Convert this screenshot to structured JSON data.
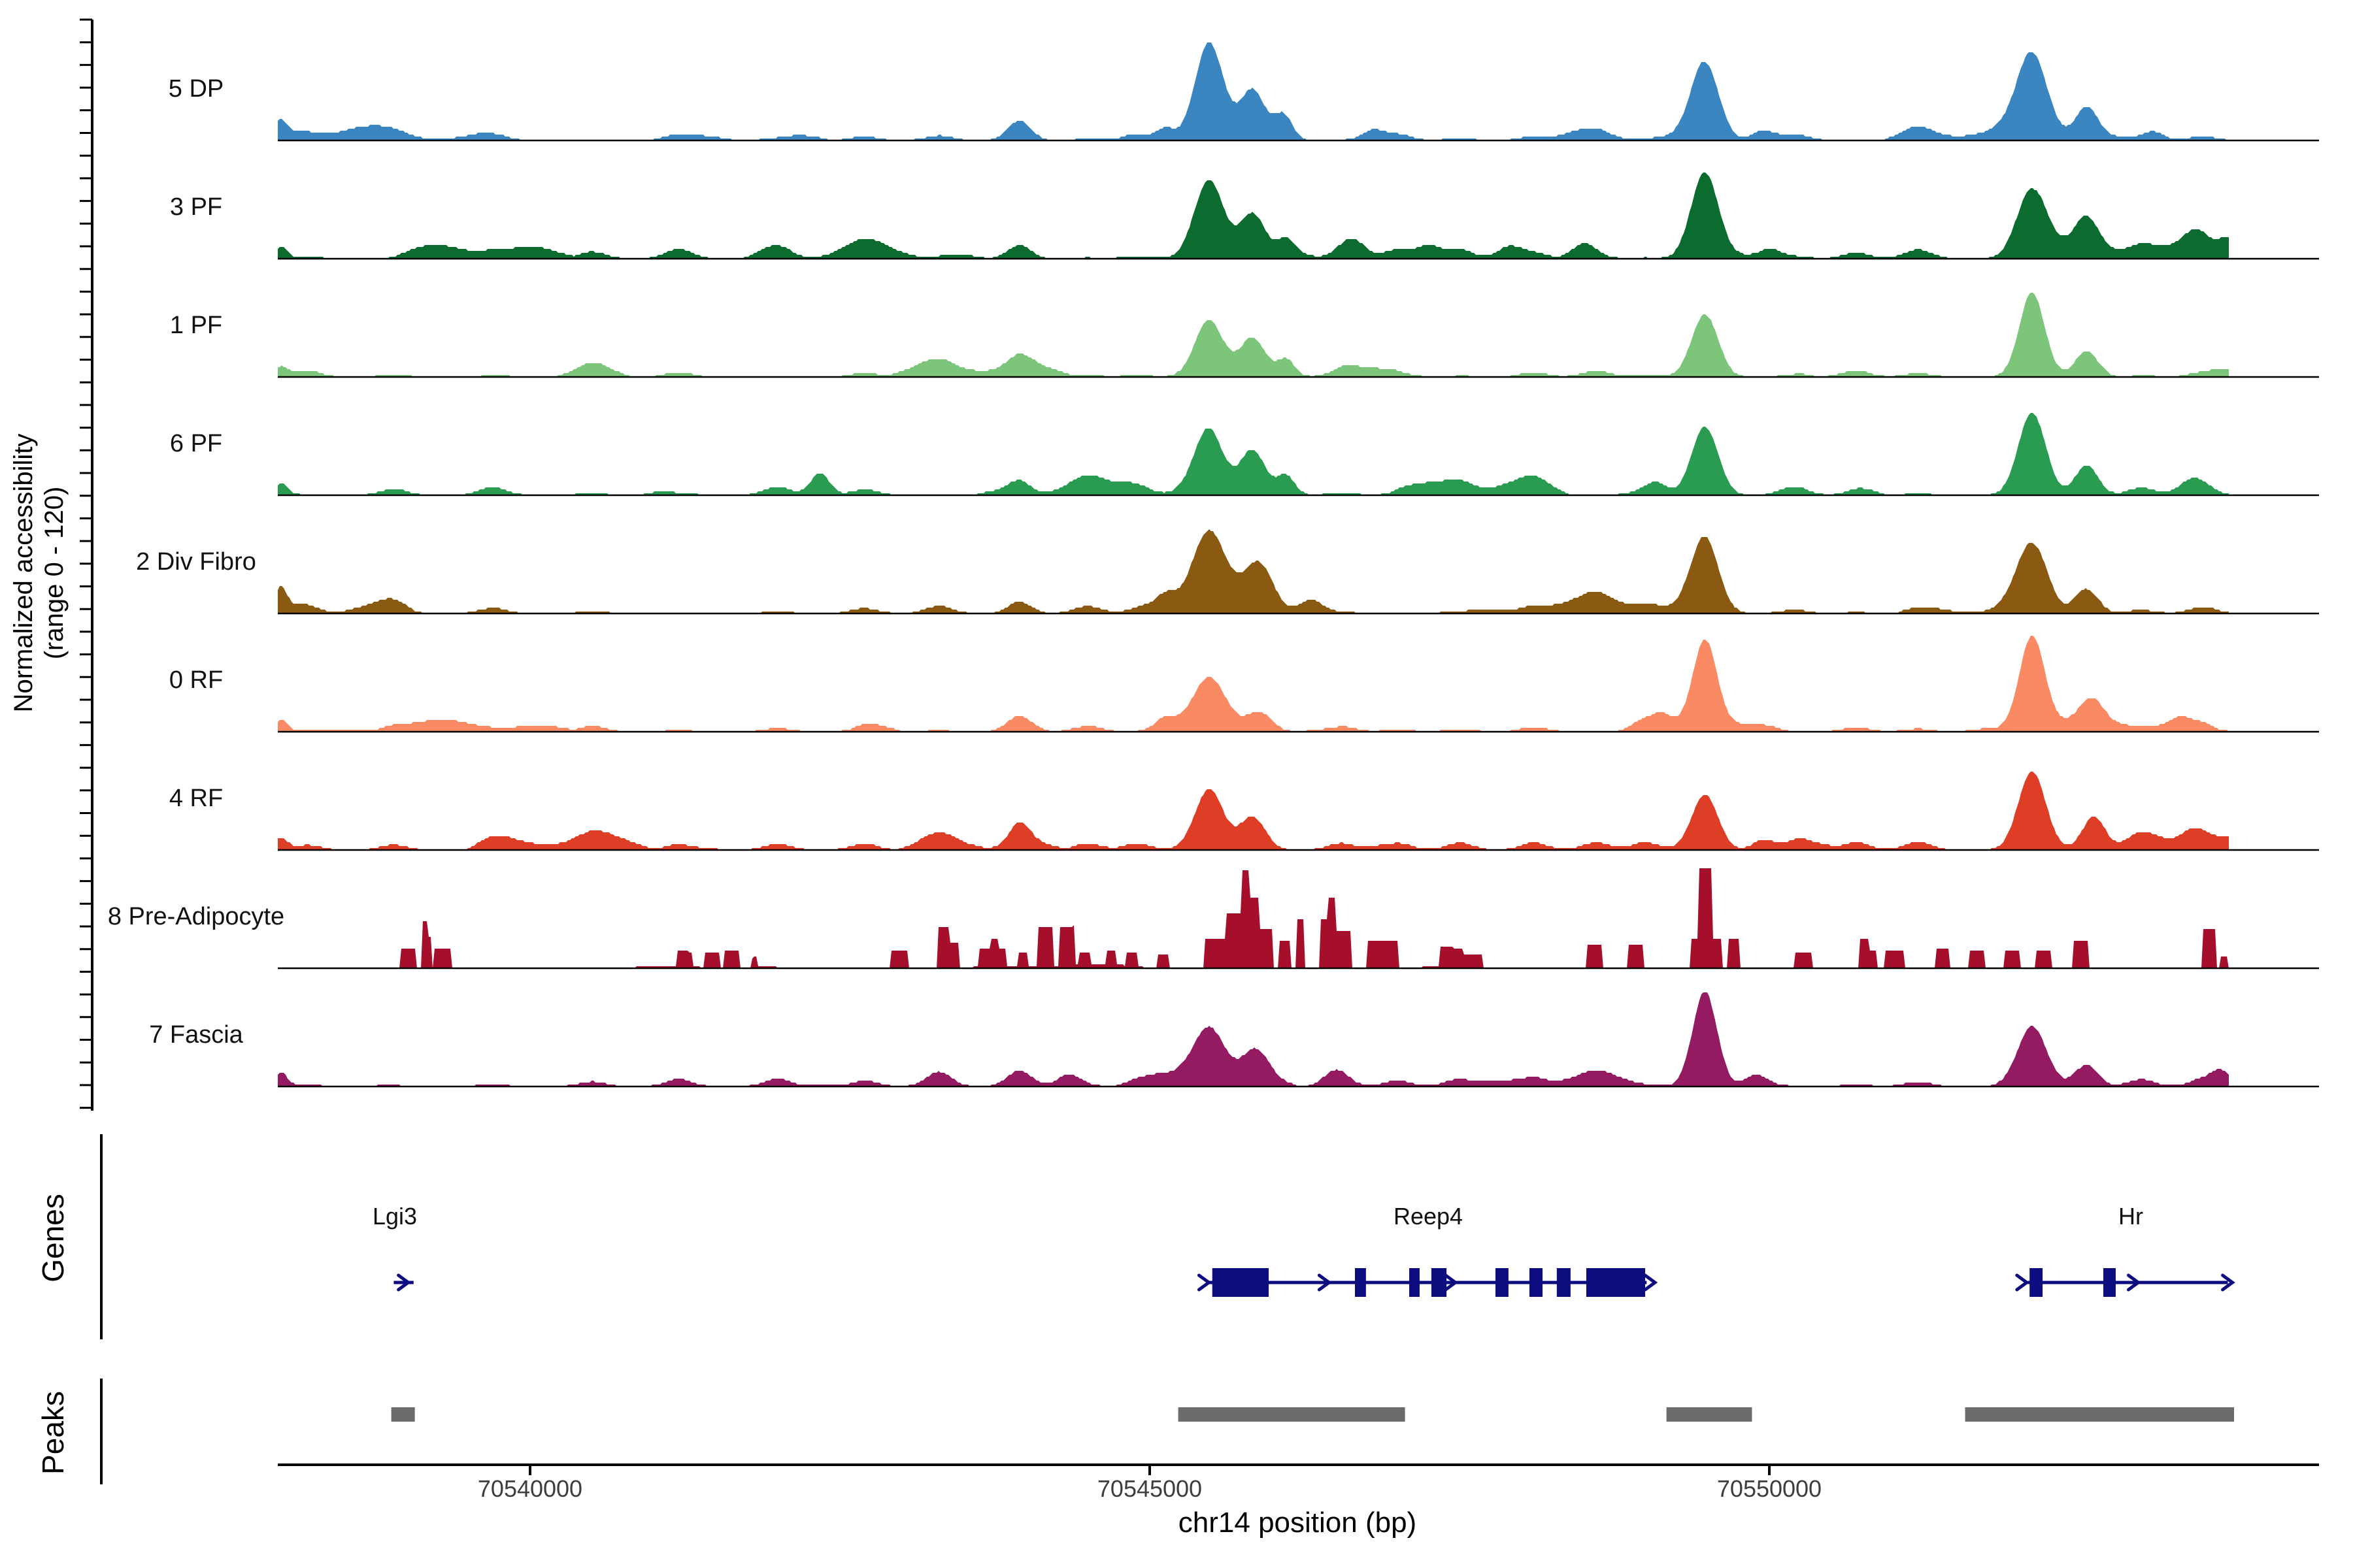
{
  "figure": {
    "ylabel_line1": "Normalized accessibility",
    "ylabel_line2": "(range 0 - 120)",
    "genes_section_label": "Genes",
    "peaks_section_label": "Peaks",
    "xaxis_title": "chr14 position (bp)"
  },
  "chart_data": {
    "type": "area",
    "subtype": "genome-coverage-tracks",
    "ymax_per_track": 120,
    "grid": false,
    "genome_axis": {
      "chrom": "chr14",
      "xlim_bp": [
        70537960,
        70554420
      ],
      "ticks_bp": [
        70540000,
        70545000,
        70550000
      ],
      "tick_labels": [
        "70540000",
        "70545000",
        "70550000"
      ],
      "xlabel": "chr14 position (bp)"
    },
    "tracks": [
      {
        "label": "5 DP",
        "color": "#3B86C0",
        "seed": 1,
        "noise": 0.05,
        "minor_h": 0.07,
        "peaks": [
          [
            70537990,
            0.14,
            120
          ],
          [
            70543950,
            0.2,
            220
          ],
          [
            70545130,
            0.12,
            160
          ],
          [
            70545480,
            1.0,
            270
          ],
          [
            70545830,
            0.52,
            240
          ],
          [
            70546080,
            0.26,
            170
          ],
          [
            70546800,
            0.1,
            200
          ],
          [
            70549480,
            0.8,
            260
          ],
          [
            70549950,
            0.1,
            200
          ],
          [
            70552120,
            0.78,
            280
          ],
          [
            70552560,
            0.33,
            220
          ],
          [
            70553100,
            0.08,
            200
          ]
        ]
      },
      {
        "label": "3 PF",
        "color": "#0C6B2E",
        "seed": 2,
        "noise": 0.06,
        "minor_h": 0.1,
        "peaks": [
          [
            70537990,
            0.12,
            120
          ],
          [
            70543950,
            0.14,
            220
          ],
          [
            70545480,
            0.8,
            280
          ],
          [
            70545830,
            0.46,
            240
          ],
          [
            70546100,
            0.2,
            180
          ],
          [
            70546650,
            0.16,
            220
          ],
          [
            70547250,
            0.13,
            220
          ],
          [
            70547900,
            0.12,
            220
          ],
          [
            70548500,
            0.14,
            220
          ],
          [
            70549480,
            0.88,
            260
          ],
          [
            70550000,
            0.1,
            200
          ],
          [
            70552120,
            0.72,
            280
          ],
          [
            70552560,
            0.3,
            220
          ],
          [
            70553450,
            0.16,
            260
          ],
          [
            70553700,
            0.2,
            180
          ]
        ]
      },
      {
        "label": "1 PF",
        "color": "#7CC57B",
        "seed": 3,
        "noise": 0.05,
        "minor_h": 0.07,
        "peaks": [
          [
            70537990,
            0.1,
            120
          ],
          [
            70543950,
            0.12,
            220
          ],
          [
            70545480,
            0.58,
            270
          ],
          [
            70545830,
            0.4,
            240
          ],
          [
            70546100,
            0.18,
            170
          ],
          [
            70549480,
            0.64,
            250
          ],
          [
            70552120,
            0.86,
            240
          ],
          [
            70552560,
            0.26,
            220
          ]
        ]
      },
      {
        "label": "6 PF",
        "color": "#2A9C51",
        "seed": 4,
        "noise": 0.06,
        "minor_h": 0.09,
        "peaks": [
          [
            70537990,
            0.12,
            120
          ],
          [
            70542340,
            0.22,
            180
          ],
          [
            70543950,
            0.14,
            220
          ],
          [
            70545480,
            0.66,
            270
          ],
          [
            70545830,
            0.46,
            240
          ],
          [
            70546100,
            0.2,
            170
          ],
          [
            70549100,
            0.1,
            200
          ],
          [
            70549480,
            0.7,
            250
          ],
          [
            70552120,
            0.84,
            260
          ],
          [
            70552560,
            0.3,
            220
          ],
          [
            70553400,
            0.12,
            240
          ]
        ]
      },
      {
        "label": "2 Div Fibro",
        "color": "#8A5A13",
        "seed": 5,
        "noise": 0.05,
        "minor_h": 0.08,
        "peaks": [
          [
            70537990,
            0.22,
            110
          ],
          [
            70543950,
            0.12,
            220
          ],
          [
            70545130,
            0.14,
            180
          ],
          [
            70545480,
            0.85,
            330
          ],
          [
            70545880,
            0.48,
            280
          ],
          [
            70546300,
            0.14,
            220
          ],
          [
            70549480,
            0.74,
            260
          ],
          [
            70552120,
            0.64,
            290
          ],
          [
            70552560,
            0.25,
            220
          ]
        ]
      },
      {
        "label": "0 RF",
        "color": "#F98A63",
        "seed": 6,
        "noise": 0.045,
        "minor_h": 0.06,
        "peaks": [
          [
            70537990,
            0.12,
            120
          ],
          [
            70543950,
            0.16,
            240
          ],
          [
            70545130,
            0.14,
            200
          ],
          [
            70545480,
            0.56,
            320
          ],
          [
            70545880,
            0.2,
            240
          ],
          [
            70549150,
            0.1,
            200
          ],
          [
            70549480,
            0.92,
            230
          ],
          [
            70552120,
            0.97,
            240
          ],
          [
            70552600,
            0.22,
            220
          ],
          [
            70553300,
            0.08,
            200
          ]
        ]
      },
      {
        "label": "4 RF",
        "color": "#DE3D26",
        "seed": 7,
        "noise": 0.055,
        "minor_h": 0.09,
        "peaks": [
          [
            70537990,
            0.12,
            120
          ],
          [
            70543950,
            0.24,
            200
          ],
          [
            70545480,
            0.62,
            270
          ],
          [
            70545830,
            0.34,
            240
          ],
          [
            70549480,
            0.56,
            250
          ],
          [
            70549950,
            0.1,
            200
          ],
          [
            70552120,
            0.8,
            260
          ],
          [
            70552620,
            0.34,
            220
          ],
          [
            70553400,
            0.1,
            220
          ]
        ]
      },
      {
        "label": "8 Pre-Adipocyte",
        "color": "#A50F2B",
        "seed": 8,
        "noise": 0.015,
        "minor_h": 0,
        "peaks": [],
        "blocks": [
          [
            70538950,
            70539080,
            0.2
          ],
          [
            70539120,
            70539210,
            0.32
          ],
          [
            70539130,
            70539175,
            0.48
          ],
          [
            70539215,
            70539370,
            0.2
          ],
          [
            70541190,
            70541315,
            0.15
          ],
          [
            70541400,
            70541525,
            0.15
          ],
          [
            70541565,
            70541695,
            0.17
          ],
          [
            70541780,
            70541840,
            0.1
          ],
          [
            70542915,
            70543045,
            0.17
          ],
          [
            70543295,
            70543380,
            0.42
          ],
          [
            70543380,
            70543465,
            0.25
          ],
          [
            70543615,
            70543845,
            0.18
          ],
          [
            70543720,
            70543785,
            0.27
          ],
          [
            70543930,
            70544015,
            0.14
          ],
          [
            70544100,
            70544225,
            0.4
          ],
          [
            70544265,
            70544395,
            0.4
          ],
          [
            70544435,
            70544520,
            0.12
          ],
          [
            70544645,
            70544730,
            0.14
          ],
          [
            70544815,
            70544900,
            0.14
          ],
          [
            70545065,
            70545150,
            0.14
          ],
          [
            70545445,
            70545615,
            0.3
          ],
          [
            70545615,
            70545740,
            0.55
          ],
          [
            70545740,
            70545805,
            1.0
          ],
          [
            70545805,
            70545890,
            0.72
          ],
          [
            70545890,
            70545995,
            0.4
          ],
          [
            70546035,
            70546140,
            0.28
          ],
          [
            70546185,
            70546250,
            0.5
          ],
          [
            70546375,
            70546440,
            0.5
          ],
          [
            70546440,
            70546500,
            0.72
          ],
          [
            70546500,
            70546625,
            0.38
          ],
          [
            70546755,
            70547005,
            0.28
          ],
          [
            70547345,
            70547535,
            0.2
          ],
          [
            70547535,
            70547685,
            0.14
          ],
          [
            70548525,
            70548650,
            0.24
          ],
          [
            70548865,
            70548990,
            0.24
          ],
          [
            70549370,
            70549430,
            0.3
          ],
          [
            70549432,
            70549545,
            1.02
          ],
          [
            70549545,
            70549620,
            0.3
          ],
          [
            70549665,
            70549760,
            0.3
          ],
          [
            70550210,
            70550340,
            0.16
          ],
          [
            70550720,
            70550800,
            0.3
          ],
          [
            70550800,
            70550865,
            0.18
          ],
          [
            70550930,
            70551095,
            0.18
          ],
          [
            70551350,
            70551455,
            0.2
          ],
          [
            70551605,
            70551730,
            0.18
          ],
          [
            70551900,
            70552025,
            0.18
          ],
          [
            70552150,
            70552280,
            0.18
          ],
          [
            70552445,
            70552575,
            0.28
          ],
          [
            70553500,
            70553610,
            0.4
          ],
          [
            70553640,
            70553700,
            0.12
          ]
        ]
      },
      {
        "label": "7 Fascia",
        "color": "#941A61",
        "seed": 9,
        "noise": 0.05,
        "minor_h": 0.08,
        "peaks": [
          [
            70537990,
            0.14,
            120
          ],
          [
            70543300,
            0.12,
            240
          ],
          [
            70543950,
            0.16,
            240
          ],
          [
            70544350,
            0.12,
            220
          ],
          [
            70545480,
            0.56,
            300
          ],
          [
            70545850,
            0.3,
            240
          ],
          [
            70546500,
            0.14,
            220
          ],
          [
            70549480,
            0.97,
            230
          ],
          [
            70549900,
            0.12,
            220
          ],
          [
            70552120,
            0.6,
            280
          ],
          [
            70552560,
            0.22,
            220
          ],
          [
            70553650,
            0.14,
            180
          ]
        ]
      }
    ],
    "shared_minor_bumps_bp": [
      70538200,
      70538900,
      70539700,
      70540500,
      70541200,
      70542000,
      70542700,
      70543300,
      70544500,
      70544900,
      70546550,
      70547000,
      70547500,
      70548100,
      70548600,
      70549000,
      70550200,
      70550700,
      70551200,
      70553000,
      70553500
    ],
    "genes": {
      "color": "#0D0D80",
      "items": [
        {
          "name": "Lgi3",
          "strand": "+",
          "line_bp": [
            70538900,
            70539060
          ],
          "exons_bp": [],
          "arrows_bp": [
            70538980
          ]
        },
        {
          "name": "Reep4",
          "strand": "+",
          "line_bp": [
            70545475,
            70549010
          ],
          "exons_bp": [
            [
              70545505,
              70545960
            ],
            [
              70546656,
              70546745
            ],
            [
              70547094,
              70547178
            ],
            [
              70547273,
              70547395
            ],
            [
              70547790,
              70547895
            ],
            [
              70548064,
              70548170
            ],
            [
              70548285,
              70548396
            ],
            [
              70548523,
              70548998
            ]
          ],
          "arrows_bp": [
            70545440,
            70546410,
            70547430,
            70549040
          ]
        },
        {
          "name": "Hr",
          "strand": "+",
          "line_bp": [
            70552085,
            70553700
          ],
          "exons_bp": [
            [
              70552100,
              70552205
            ],
            [
              70552695,
              70552795
            ]
          ],
          "arrows_bp": [
            70552040,
            70552940,
            70553700
          ]
        }
      ]
    },
    "peak_regions": {
      "color": "#6B6B6B",
      "boxes_bp": [
        [
          70538880,
          70539070
        ],
        [
          70545230,
          70547060
        ],
        [
          70549170,
          70549860
        ],
        [
          70551580,
          70553750
        ]
      ]
    }
  }
}
